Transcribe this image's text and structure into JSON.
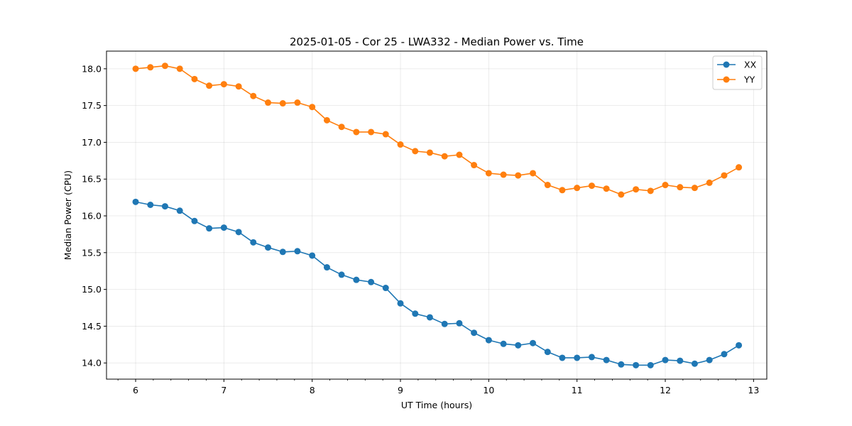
{
  "chart_data": {
    "type": "line",
    "title": "2025-01-05 - Cor 25 - LWA332 - Median Power vs. Time",
    "xlabel": "UT Time (hours)",
    "ylabel": "Median Power (CPU)",
    "xlim": [
      5.67,
      13.15
    ],
    "ylim": [
      13.78,
      18.24
    ],
    "xticks": [
      6,
      7,
      8,
      9,
      10,
      11,
      12,
      13
    ],
    "xtick_labels": [
      "6",
      "7",
      "8",
      "9",
      "10",
      "11",
      "12",
      "13"
    ],
    "yticks": [
      14.0,
      14.5,
      15.0,
      15.5,
      16.0,
      16.5,
      17.0,
      17.5,
      18.0
    ],
    "ytick_labels": [
      "14.0",
      "14.5",
      "15.0",
      "15.5",
      "16.0",
      "16.5",
      "17.0",
      "17.5",
      "18.0"
    ],
    "grid": true,
    "legend_position": "top-right",
    "x": [
      6.0,
      6.167,
      6.333,
      6.5,
      6.667,
      6.833,
      7.0,
      7.167,
      7.333,
      7.5,
      7.667,
      7.833,
      8.0,
      8.167,
      8.333,
      8.5,
      8.667,
      8.833,
      9.0,
      9.167,
      9.333,
      9.5,
      9.667,
      9.833,
      10.0,
      10.167,
      10.333,
      10.5,
      10.667,
      10.833,
      11.0,
      11.167,
      11.333,
      11.5,
      11.667,
      11.833,
      12.0,
      12.167,
      12.333,
      12.5,
      12.667,
      12.833
    ],
    "series": [
      {
        "name": "XX",
        "color": "#1f77b4",
        "values": [
          16.19,
          16.15,
          16.13,
          16.07,
          15.93,
          15.83,
          15.84,
          15.78,
          15.64,
          15.57,
          15.51,
          15.52,
          15.46,
          15.3,
          15.2,
          15.13,
          15.1,
          15.02,
          14.81,
          14.67,
          14.62,
          14.53,
          14.54,
          14.41,
          14.31,
          14.26,
          14.24,
          14.27,
          14.15,
          14.07,
          14.07,
          14.08,
          14.04,
          13.98,
          13.97,
          13.97,
          14.04,
          14.03,
          13.99,
          14.04,
          14.12,
          14.24
        ]
      },
      {
        "name": "YY",
        "color": "#ff7f0e",
        "values": [
          18.0,
          18.02,
          18.04,
          18.0,
          17.86,
          17.77,
          17.79,
          17.76,
          17.63,
          17.54,
          17.53,
          17.54,
          17.48,
          17.3,
          17.21,
          17.14,
          17.14,
          17.11,
          16.97,
          16.88,
          16.86,
          16.81,
          16.83,
          16.69,
          16.58,
          16.56,
          16.55,
          16.58,
          16.42,
          16.35,
          16.38,
          16.41,
          16.37,
          16.29,
          16.36,
          16.34,
          16.42,
          16.39,
          16.38,
          16.45,
          16.55,
          16.66
        ]
      }
    ]
  }
}
